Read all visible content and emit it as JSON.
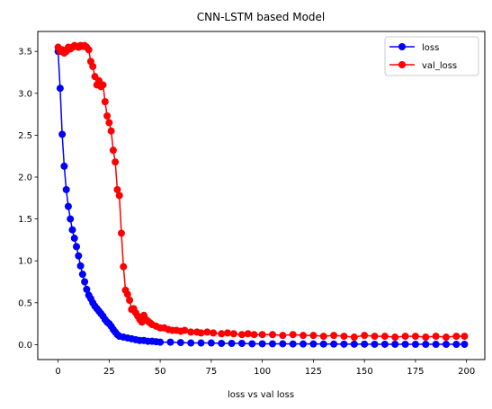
{
  "chart_data": {
    "type": "line",
    "title": "CNN-LSTM based Model",
    "xlabel": "loss vs val loss",
    "ylabel": "",
    "xlim": [
      -9.95,
      208.95
    ],
    "ylim": [
      -0.178,
      3.738
    ],
    "xticks": [
      0,
      25,
      50,
      75,
      100,
      125,
      150,
      175,
      200
    ],
    "yticks": [
      0.0,
      0.5,
      1.0,
      1.5,
      2.0,
      2.5,
      3.0,
      3.5
    ],
    "grid": false,
    "legend_position": "top-right",
    "series": [
      {
        "name": "loss",
        "color": "#0000ff",
        "marker": "circle",
        "points": [
          [
            0,
            3.5
          ],
          [
            1,
            3.06
          ],
          [
            2,
            2.51
          ],
          [
            3,
            2.13
          ],
          [
            4,
            1.85
          ],
          [
            5,
            1.65
          ],
          [
            6,
            1.5
          ],
          [
            7,
            1.37
          ],
          [
            8,
            1.27
          ],
          [
            9,
            1.17
          ],
          [
            10,
            1.06
          ],
          [
            11,
            0.94
          ],
          [
            12,
            0.84
          ],
          [
            13,
            0.75
          ],
          [
            14,
            0.66
          ],
          [
            15,
            0.59
          ],
          [
            16,
            0.55
          ],
          [
            17,
            0.5
          ],
          [
            18,
            0.46
          ],
          [
            19,
            0.43
          ],
          [
            20,
            0.4
          ],
          [
            21,
            0.37
          ],
          [
            22,
            0.34
          ],
          [
            23,
            0.3
          ],
          [
            24,
            0.27
          ],
          [
            25,
            0.25
          ],
          [
            26,
            0.22
          ],
          [
            27,
            0.18
          ],
          [
            28,
            0.15
          ],
          [
            29,
            0.12
          ],
          [
            30,
            0.1
          ],
          [
            32,
            0.09
          ],
          [
            34,
            0.08
          ],
          [
            36,
            0.07
          ],
          [
            38,
            0.06
          ],
          [
            40,
            0.05
          ],
          [
            42,
            0.05
          ],
          [
            44,
            0.04
          ],
          [
            46,
            0.04
          ],
          [
            48,
            0.035
          ],
          [
            50,
            0.03
          ],
          [
            55,
            0.03
          ],
          [
            60,
            0.025
          ],
          [
            65,
            0.02
          ],
          [
            70,
            0.02
          ],
          [
            75,
            0.02
          ],
          [
            80,
            0.015
          ],
          [
            85,
            0.015
          ],
          [
            90,
            0.015
          ],
          [
            95,
            0.01
          ],
          [
            100,
            0.01
          ],
          [
            105,
            0.01
          ],
          [
            110,
            0.01
          ],
          [
            115,
            0.008
          ],
          [
            120,
            0.008
          ],
          [
            125,
            0.008
          ],
          [
            130,
            0.007
          ],
          [
            135,
            0.007
          ],
          [
            140,
            0.006
          ],
          [
            145,
            0.006
          ],
          [
            150,
            0.006
          ],
          [
            155,
            0.005
          ],
          [
            160,
            0.005
          ],
          [
            165,
            0.005
          ],
          [
            170,
            0.005
          ],
          [
            175,
            0.004
          ],
          [
            180,
            0.004
          ],
          [
            185,
            0.004
          ],
          [
            190,
            0.004
          ],
          [
            195,
            0.004
          ],
          [
            199,
            0.004
          ]
        ]
      },
      {
        "name": "val_loss",
        "color": "#ff0000",
        "marker": "circle",
        "points": [
          [
            0,
            3.55
          ],
          [
            1,
            3.5
          ],
          [
            2,
            3.52
          ],
          [
            3,
            3.48
          ],
          [
            4,
            3.5
          ],
          [
            5,
            3.55
          ],
          [
            6,
            3.53
          ],
          [
            7,
            3.55
          ],
          [
            8,
            3.57
          ],
          [
            9,
            3.56
          ],
          [
            10,
            3.55
          ],
          [
            11,
            3.57
          ],
          [
            12,
            3.56
          ],
          [
            13,
            3.57
          ],
          [
            14,
            3.55
          ],
          [
            15,
            3.52
          ],
          [
            16,
            3.38
          ],
          [
            17,
            3.32
          ],
          [
            18,
            3.2
          ],
          [
            19,
            3.1
          ],
          [
            20,
            3.15
          ],
          [
            21,
            3.08
          ],
          [
            22,
            3.1
          ],
          [
            23,
            2.9
          ],
          [
            24,
            2.73
          ],
          [
            25,
            2.65
          ],
          [
            26,
            2.55
          ],
          [
            27,
            2.32
          ],
          [
            28,
            2.18
          ],
          [
            29,
            1.85
          ],
          [
            30,
            1.78
          ],
          [
            31,
            1.33
          ],
          [
            32,
            0.93
          ],
          [
            33,
            0.65
          ],
          [
            34,
            0.6
          ],
          [
            35,
            0.53
          ],
          [
            36,
            0.42
          ],
          [
            37,
            0.43
          ],
          [
            38,
            0.38
          ],
          [
            39,
            0.34
          ],
          [
            40,
            0.3
          ],
          [
            41,
            0.27
          ],
          [
            42,
            0.35
          ],
          [
            43,
            0.3
          ],
          [
            44,
            0.28
          ],
          [
            45,
            0.26
          ],
          [
            46,
            0.24
          ],
          [
            48,
            0.22
          ],
          [
            50,
            0.2
          ],
          [
            52,
            0.2
          ],
          [
            54,
            0.18
          ],
          [
            56,
            0.17
          ],
          [
            58,
            0.17
          ],
          [
            60,
            0.16
          ],
          [
            62,
            0.17
          ],
          [
            65,
            0.15
          ],
          [
            68,
            0.15
          ],
          [
            70,
            0.14
          ],
          [
            73,
            0.15
          ],
          [
            76,
            0.14
          ],
          [
            80,
            0.13
          ],
          [
            83,
            0.14
          ],
          [
            86,
            0.13
          ],
          [
            90,
            0.12
          ],
          [
            93,
            0.13
          ],
          [
            96,
            0.12
          ],
          [
            100,
            0.12
          ],
          [
            105,
            0.12
          ],
          [
            110,
            0.11
          ],
          [
            115,
            0.12
          ],
          [
            120,
            0.11
          ],
          [
            125,
            0.11
          ],
          [
            130,
            0.1
          ],
          [
            135,
            0.11
          ],
          [
            140,
            0.1
          ],
          [
            145,
            0.09
          ],
          [
            150,
            0.11
          ],
          [
            155,
            0.1
          ],
          [
            160,
            0.1
          ],
          [
            165,
            0.09
          ],
          [
            170,
            0.1
          ],
          [
            175,
            0.1
          ],
          [
            180,
            0.09
          ],
          [
            185,
            0.1
          ],
          [
            190,
            0.09
          ],
          [
            195,
            0.1
          ],
          [
            199,
            0.1
          ]
        ]
      }
    ]
  }
}
